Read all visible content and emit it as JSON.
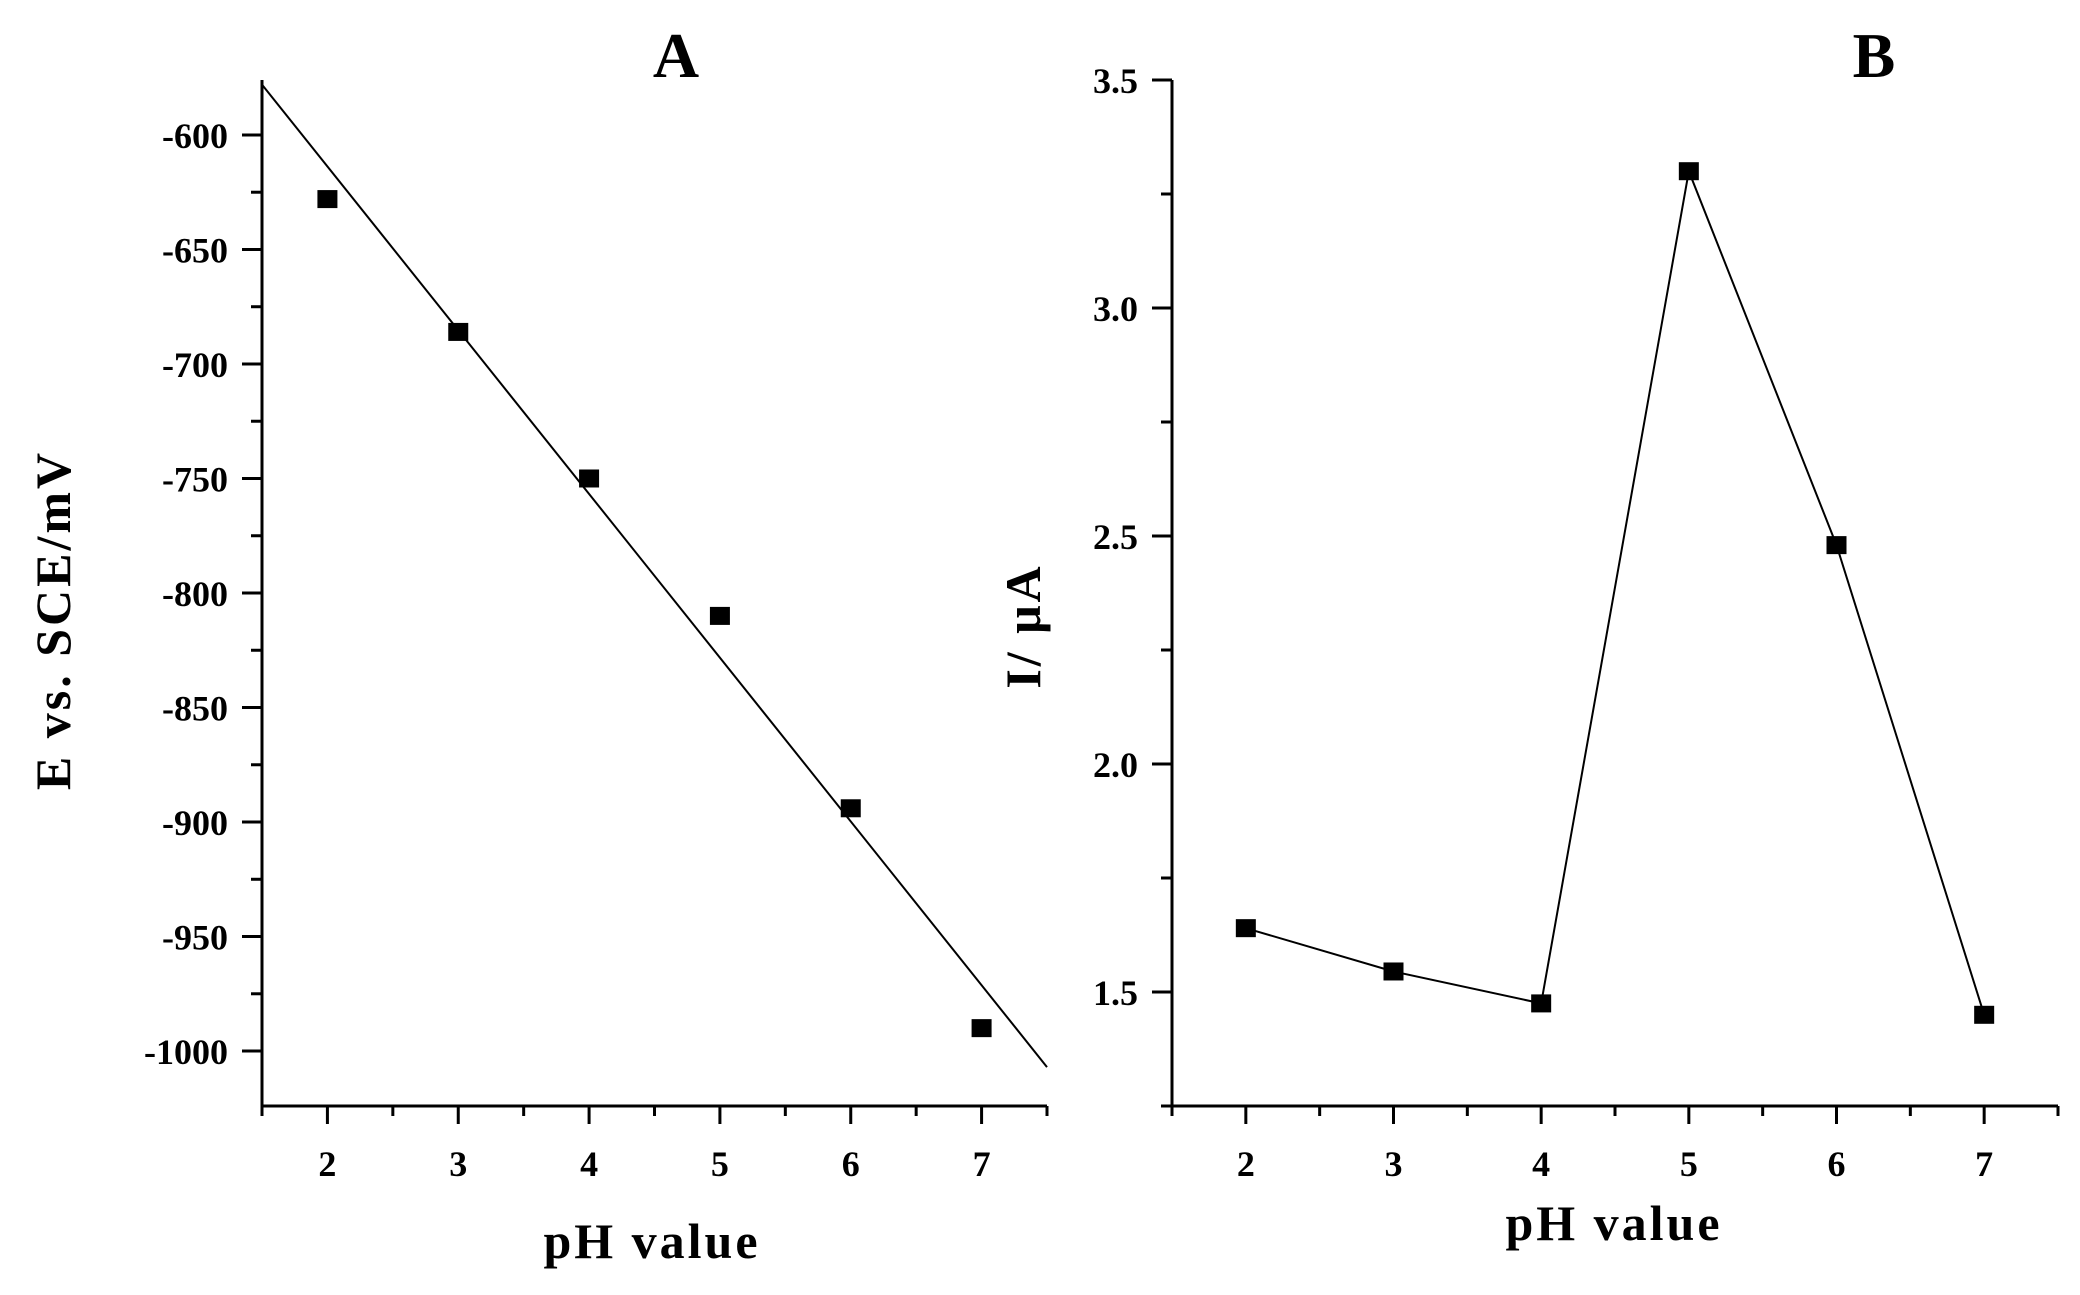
{
  "chart_data": [
    {
      "type": "scatter",
      "title": "A",
      "xlabel": "pH value",
      "ylabel": "E vs. SCE/mV",
      "xlim": [
        1.5,
        7.5
      ],
      "ylim": [
        -1024,
        -576
      ],
      "x_ticks": [
        2,
        3,
        4,
        5,
        6,
        7
      ],
      "y_ticks": [
        -600,
        -650,
        -700,
        -750,
        -800,
        -850,
        -900,
        -950,
        -1000
      ],
      "x_tick_labels": [
        "2",
        "3",
        "4",
        "5",
        "6",
        "7"
      ],
      "y_tick_labels": [
        "-600",
        "-650",
        "-700",
        "-750",
        "-800",
        "-850",
        "-900",
        "-950",
        "-1000"
      ],
      "series": [
        {
          "x": [
            2,
            3,
            4,
            5,
            6,
            7
          ],
          "y": [
            -628,
            -686,
            -750,
            -810,
            -894,
            -990
          ],
          "marker": "square"
        }
      ],
      "fit_line": {
        "x": [
          1.5,
          7.5
        ],
        "y": [
          -578,
          -1007
        ]
      },
      "grid": false,
      "legend": "none",
      "color": "#000000"
    },
    {
      "type": "line",
      "title": "B",
      "xlabel": "pH value",
      "ylabel": "I/ μA",
      "xlim": [
        1.5,
        7.5
      ],
      "ylim": [
        1.25,
        3.5
      ],
      "x_ticks": [
        2,
        3,
        4,
        5,
        6,
        7
      ],
      "y_ticks": [
        1.5,
        2.0,
        2.5,
        3.0,
        3.5
      ],
      "x_tick_labels": [
        "2",
        "3",
        "4",
        "5",
        "6",
        "7"
      ],
      "y_tick_labels": [
        "1.5",
        "2.0",
        "2.5",
        "3.0",
        "3.5"
      ],
      "series": [
        {
          "x": [
            2,
            3,
            4,
            5,
            6,
            7
          ],
          "y": [
            1.64,
            1.545,
            1.475,
            3.3,
            2.48,
            1.45
          ],
          "marker": "square"
        }
      ],
      "grid": false,
      "legend": "none",
      "color": "#000000"
    }
  ]
}
